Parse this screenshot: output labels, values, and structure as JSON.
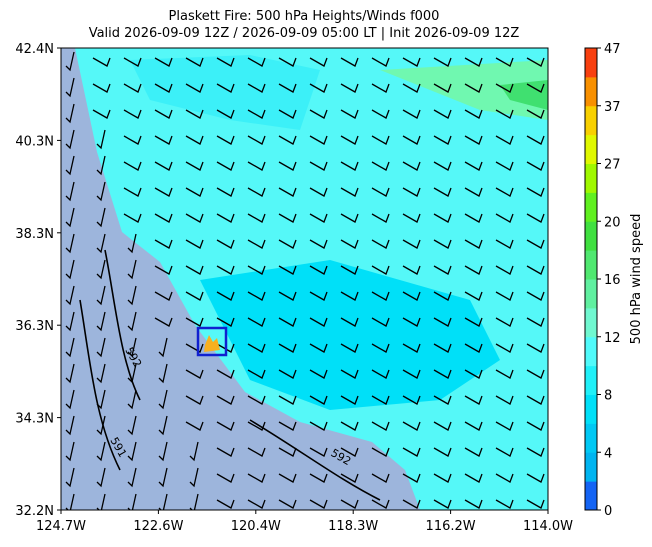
{
  "title": {
    "line1": "Plaskett Fire: 500 hPa Heights/Winds f000",
    "line2": "Valid 2026-09-09 12Z / 2026-09-09 05:00 LT | Init 2026-09-09 12Z"
  },
  "map": {
    "x_labels": [
      "124.7W",
      "122.6W",
      "120.4W",
      "118.3W",
      "116.2W",
      "114.0W"
    ],
    "y_labels": [
      "42.4N",
      "40.3N",
      "38.3N",
      "36.3N",
      "34.3N",
      "32.2N"
    ],
    "contour_labels": [
      "592",
      "591",
      "592"
    ]
  },
  "colorbar": {
    "label": "500 hPa wind speed",
    "ticks": [
      "0",
      "4",
      "8",
      "12",
      "16",
      "20",
      "27",
      "37",
      "47"
    ]
  }
}
